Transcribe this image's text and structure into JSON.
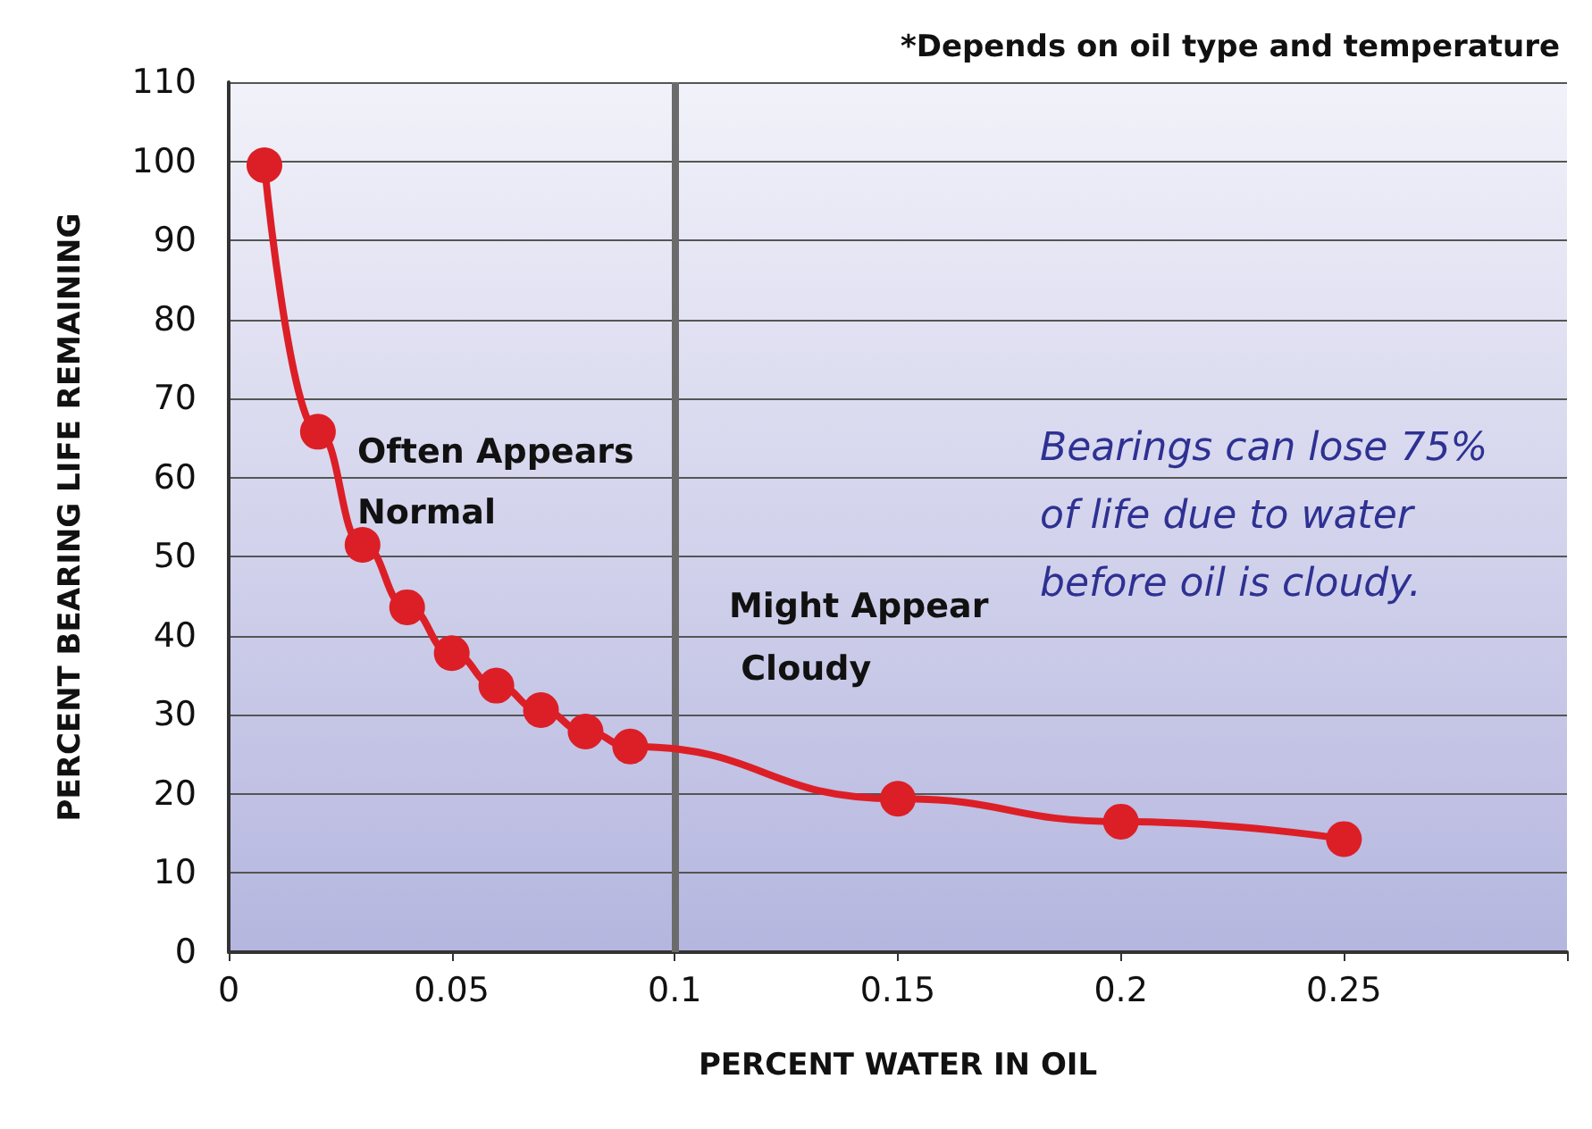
{
  "chart_data": {
    "type": "line",
    "xlabel": "PERCENT WATER IN OIL",
    "ylabel": "PERCENT BEARING LIFE REMAINING",
    "x": [
      0.008,
      0.02,
      0.03,
      0.04,
      0.05,
      0.06,
      0.07,
      0.08,
      0.09,
      0.15,
      0.2,
      0.25
    ],
    "series": [
      {
        "color": "#dc1f26",
        "values": [
          99.5,
          65.8,
          51.5,
          43.6,
          37.8,
          33.7,
          30.6,
          27.9,
          26,
          19.4,
          16.5,
          14.3
        ]
      }
    ],
    "xlim": [
      0,
      0.3
    ],
    "xticks": [
      0,
      0.05,
      0.1,
      0.15,
      0.2,
      0.25,
      {
        "value": 0.3,
        "label": null
      }
    ],
    "ylim": [
      0,
      110
    ],
    "yticks": [
      0,
      10,
      20,
      30,
      40,
      50,
      60,
      70,
      80,
      90,
      100,
      110
    ],
    "grid": "y",
    "marker": "circle",
    "line_style": "solid",
    "ref_lines": [
      {
        "axis": "x",
        "value": 0.1,
        "color": "#6b6b6b",
        "line_style": "solid"
      }
    ],
    "annotations": [
      "*Depends on oil type and temperature",
      "Often Appears Normal",
      "Might Appear Cloudy",
      "Bearings can lose 75% of life due to water before oil is cloudy."
    ]
  }
}
